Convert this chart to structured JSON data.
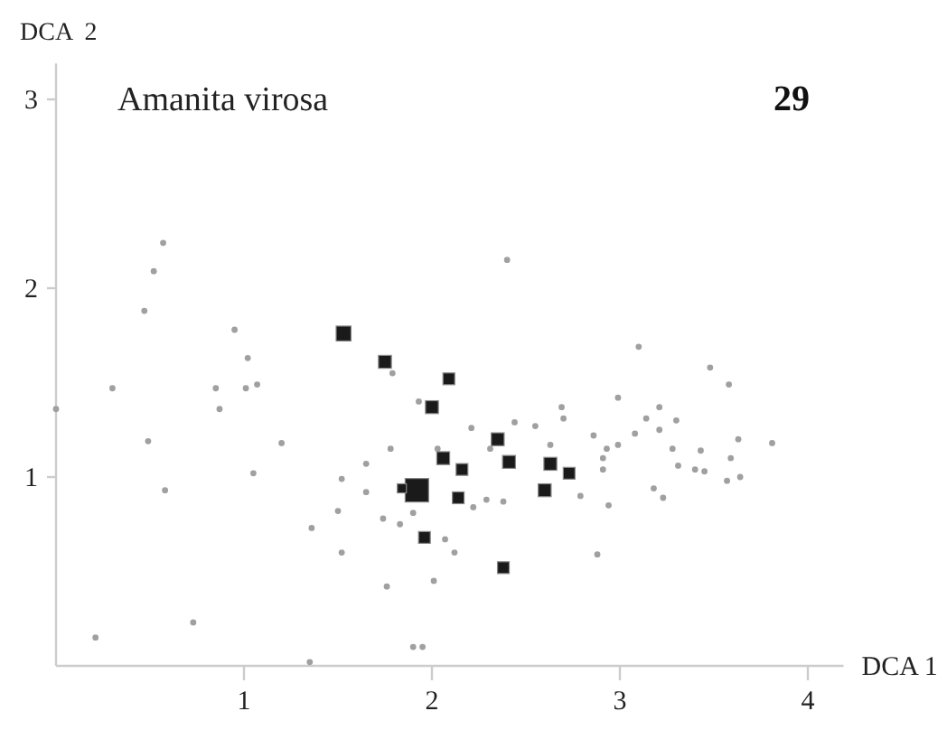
{
  "chart_data": {
    "type": "scatter",
    "title": "Amanita virosa",
    "annotations": [
      "29"
    ],
    "xlabel": "DCA 1",
    "ylabel": "DCA  2",
    "xlim": [
      0,
      4.19
    ],
    "ylim": [
      0,
      3.19
    ],
    "xticks": [
      1,
      2,
      3,
      4
    ],
    "yticks": [
      1,
      2,
      3
    ],
    "grid": false,
    "series": [
      {
        "marker": "circle",
        "color": "#a0a0a0",
        "x": [
          0.57,
          0.52,
          0.47,
          0.95,
          1.02,
          0.3,
          0.85,
          1.01,
          1.07,
          0.87,
          0.0,
          0.49,
          1.2,
          1.05,
          0.58,
          0.21,
          0.73,
          1.35,
          1.52,
          1.65,
          1.65,
          1.5,
          1.36,
          1.52,
          1.78,
          1.79,
          1.93,
          1.74,
          1.83,
          1.9,
          1.76,
          2.01,
          1.9,
          1.95,
          2.03,
          2.07,
          2.12,
          2.4,
          2.21,
          2.31,
          2.44,
          2.55,
          2.63,
          2.69,
          2.7,
          2.22,
          2.29,
          2.38,
          2.79,
          2.86,
          2.93,
          2.91,
          2.91,
          2.99,
          2.94,
          2.88,
          2.99,
          3.1,
          3.08,
          3.14,
          3.21,
          3.21,
          3.3,
          3.18,
          3.23,
          3.28,
          3.31,
          3.4,
          3.45,
          3.43,
          3.48,
          3.58,
          3.63,
          3.59,
          3.57,
          3.64,
          3.81
        ],
        "values": [
          2.24,
          2.09,
          1.88,
          1.78,
          1.63,
          1.47,
          1.47,
          1.47,
          1.49,
          1.36,
          1.36,
          1.19,
          1.18,
          1.02,
          0.93,
          0.15,
          0.23,
          0.02,
          0.99,
          1.07,
          0.92,
          0.82,
          0.73,
          0.6,
          1.15,
          1.55,
          1.4,
          0.78,
          0.75,
          0.81,
          0.42,
          0.45,
          0.1,
          0.1,
          1.15,
          0.67,
          0.6,
          2.15,
          1.26,
          1.15,
          1.29,
          1.27,
          1.17,
          1.37,
          1.31,
          0.84,
          0.88,
          0.87,
          0.9,
          1.22,
          1.15,
          1.1,
          1.04,
          1.17,
          0.85,
          0.59,
          1.42,
          1.69,
          1.23,
          1.31,
          1.37,
          1.25,
          1.3,
          0.94,
          0.89,
          1.15,
          1.06,
          1.04,
          1.03,
          1.14,
          1.58,
          1.49,
          1.2,
          1.1,
          0.98,
          1.0,
          1.18
        ]
      },
      {
        "type": "bubble",
        "marker": "square",
        "color": "#1a1a1a",
        "x": [
          1.53,
          1.75,
          2.09,
          2.0,
          2.06,
          2.16,
          2.14,
          1.92,
          1.84,
          1.96,
          2.35,
          2.41,
          2.63,
          2.73,
          2.6,
          2.38
        ],
        "values": [
          1.76,
          1.61,
          1.52,
          1.37,
          1.1,
          1.04,
          0.89,
          0.93,
          0.94,
          0.68,
          1.2,
          1.08,
          1.07,
          1.02,
          0.93,
          0.52
        ],
        "sizes": [
          0.4,
          0.3,
          0.25,
          0.3,
          0.3,
          0.25,
          0.25,
          1,
          0.15,
          0.25,
          0.3,
          0.3,
          0.3,
          0.25,
          0.3,
          0.25
        ]
      }
    ]
  }
}
